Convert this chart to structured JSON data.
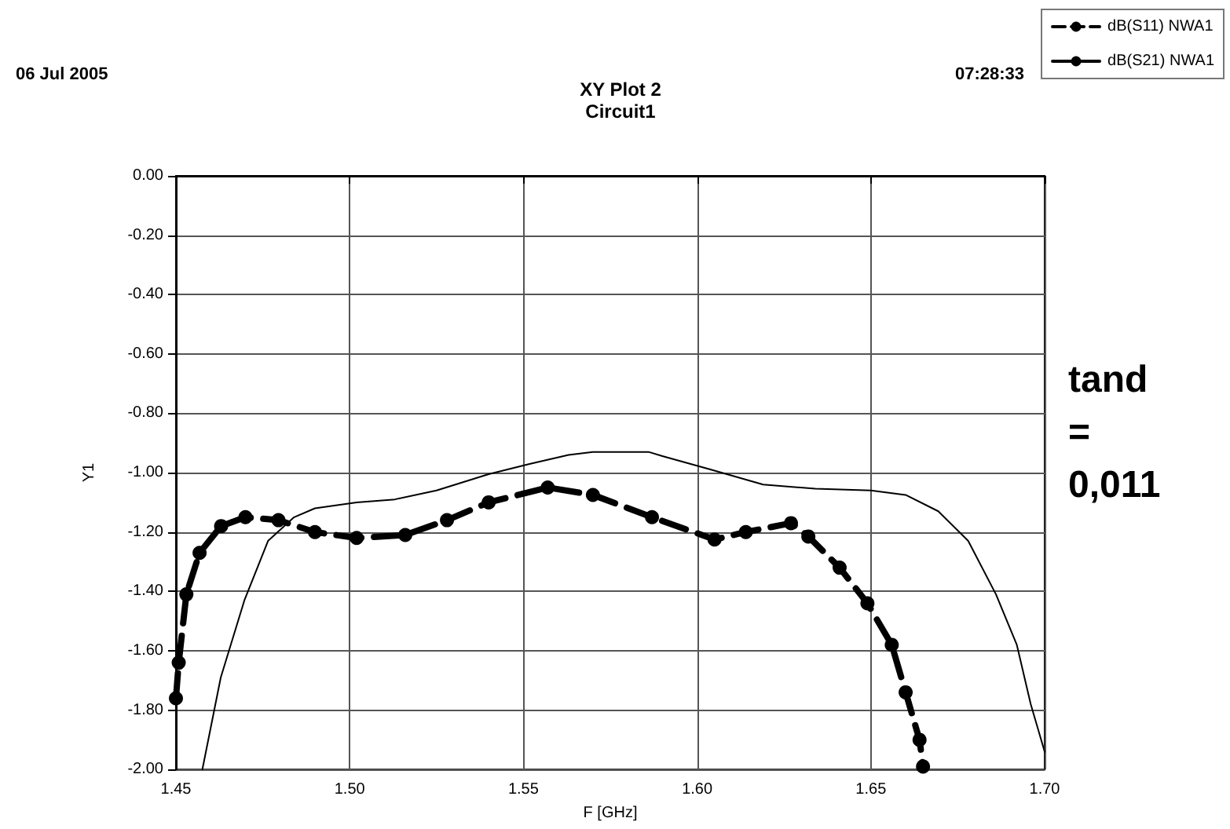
{
  "chart_data": {
    "type": "line",
    "title": "XY Plot 2",
    "subtitle": "Circuit1",
    "xlabel": "F [GHz]",
    "ylabel": "Y1",
    "annotations": [
      "06 Jul 2005",
      "07:28:33",
      "tand\n=\n0,011"
    ],
    "xlim": [
      1.45,
      1.7
    ],
    "ylim": [
      -2,
      0
    ],
    "xticks": [
      {
        "value": 1.45,
        "label": "1.45"
      },
      {
        "value": 1.5,
        "label": "1.50"
      },
      {
        "value": 1.55,
        "label": "1.55"
      },
      {
        "value": 1.6,
        "label": "1.60"
      },
      {
        "value": 1.65,
        "label": "1.65"
      },
      {
        "value": 1.7,
        "label": "1.70"
      }
    ],
    "yticks": [
      {
        "value": 0,
        "label": "0.00"
      },
      {
        "value": -0.2,
        "label": "-0.20"
      },
      {
        "value": -0.4,
        "label": "-0.40"
      },
      {
        "value": -0.6,
        "label": "-0.60"
      },
      {
        "value": -0.8,
        "label": "-0.80"
      },
      {
        "value": -1,
        "label": "-1.00"
      },
      {
        "value": -1.2,
        "label": "-1.20"
      },
      {
        "value": -1.4,
        "label": "-1.40"
      },
      {
        "value": -1.6,
        "label": "-1.60"
      },
      {
        "value": -1.8,
        "label": "-1.80"
      },
      {
        "value": -2,
        "label": "-2.00"
      }
    ],
    "grid": true,
    "legend": "top right",
    "series": [
      {
        "name": "dB(S11) NWA1",
        "color": "#000000",
        "line_style": "dashed",
        "marker": "circle",
        "x": [
          1.45,
          1.4508,
          1.453,
          1.4568,
          1.463,
          1.47,
          1.4795,
          1.49,
          1.502,
          1.516,
          1.528,
          1.54,
          1.557,
          1.57,
          1.587,
          1.605,
          1.614,
          1.627,
          1.632,
          1.641,
          1.649,
          1.656,
          1.66,
          1.664,
          1.665
        ],
        "values": [
          -1.76,
          -1.64,
          -1.41,
          -1.27,
          -1.18,
          -1.15,
          -1.16,
          -1.2,
          -1.22,
          -1.21,
          -1.16,
          -1.1,
          -1.05,
          -1.075,
          -1.15,
          -1.225,
          -1.2,
          -1.17,
          -1.215,
          -1.32,
          -1.44,
          -1.58,
          -1.74,
          -1.9,
          -1.99
        ]
      },
      {
        "name": "dB(S21) NWA1",
        "color": "#000000",
        "line_style": "solid",
        "marker": "none",
        "x": [
          1.4576,
          1.4629,
          1.4697,
          1.4765,
          1.484,
          1.49,
          1.502,
          1.513,
          1.525,
          1.54,
          1.552,
          1.563,
          1.57,
          1.586,
          1.59,
          1.604,
          1.619,
          1.634,
          1.65,
          1.66,
          1.6694,
          1.678,
          1.686,
          1.692,
          1.696,
          1.7
        ],
        "values": [
          -2,
          -1.69,
          -1.43,
          -1.23,
          -1.15,
          -1.12,
          -1.1,
          -1.09,
          -1.06,
          -1.005,
          -0.97,
          -0.94,
          -0.93,
          -0.93,
          -0.944,
          -0.99,
          -1.04,
          -1.054,
          -1.06,
          -1.075,
          -1.13,
          -1.23,
          -1.41,
          -1.58,
          -1.78,
          -1.94
        ]
      }
    ]
  }
}
